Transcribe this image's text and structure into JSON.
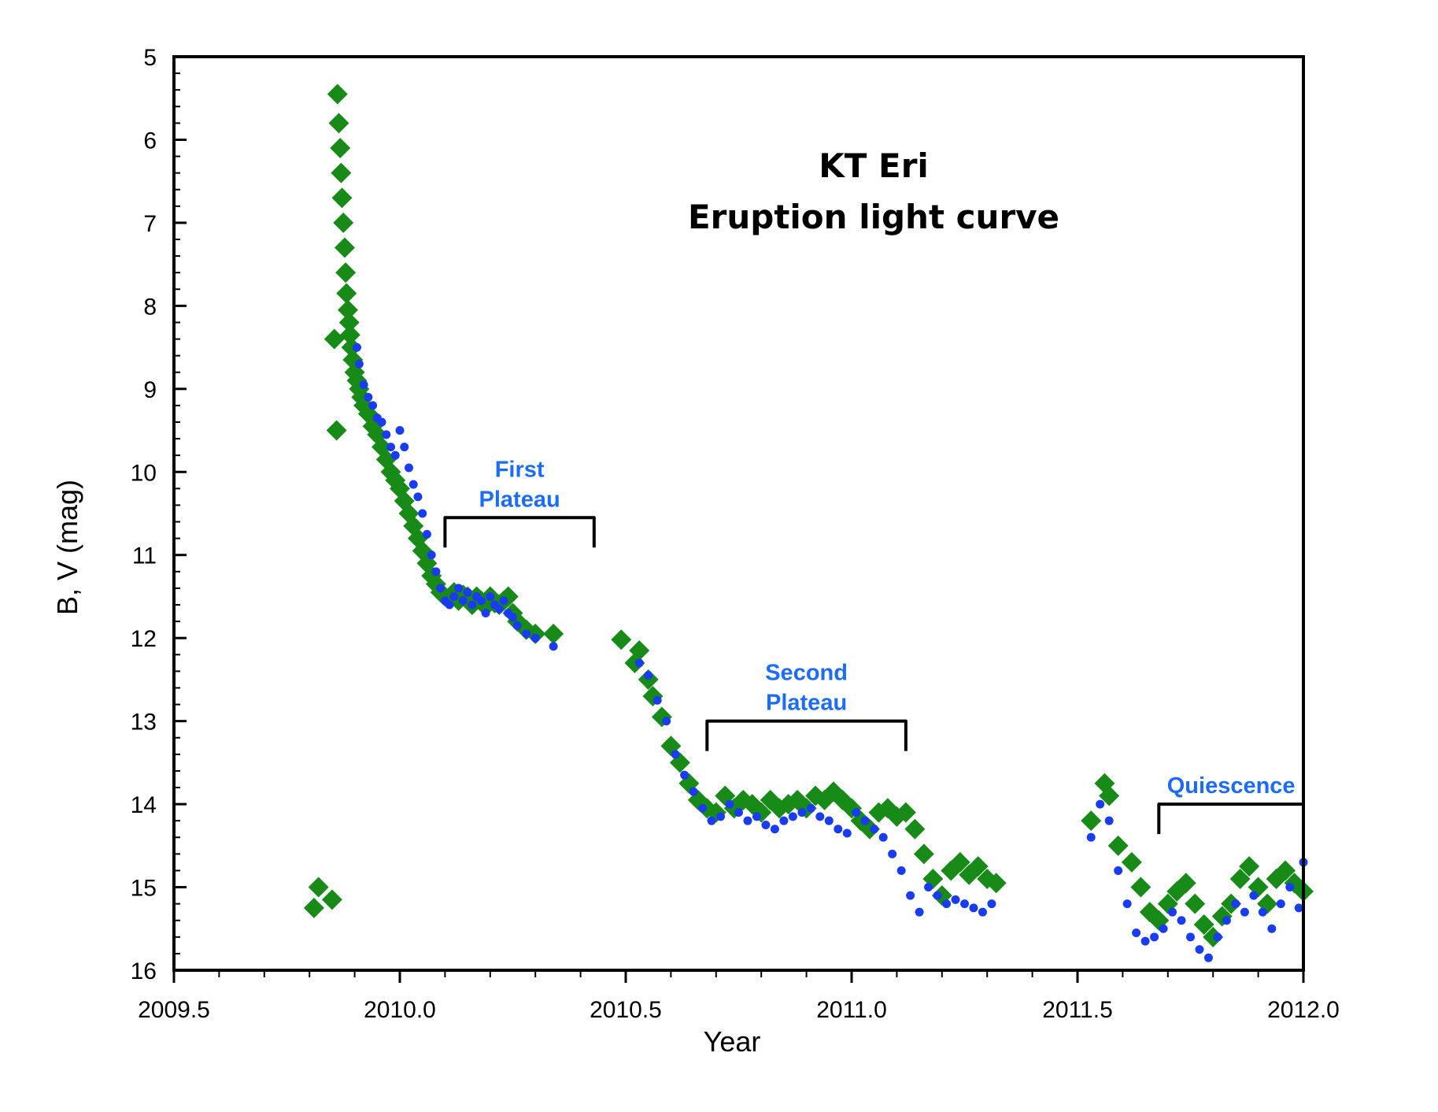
{
  "chart_data": {
    "type": "scatter",
    "title_lines": [
      "KT Eri",
      "Eruption light curve"
    ],
    "xlabel": "Year",
    "ylabel": "B, V (mag)",
    "xlim": [
      2009.5,
      2012.0
    ],
    "ylim": [
      5,
      16
    ],
    "y_inverted": true,
    "x_ticks": [
      2009.5,
      2010.0,
      2010.5,
      2011.0,
      2011.5,
      2012.0
    ],
    "x_tick_labels": [
      "2009.5",
      "2010.0",
      "2010.5",
      "2011.0",
      "2011.5",
      "2012.0"
    ],
    "y_ticks": [
      5,
      6,
      7,
      8,
      9,
      10,
      11,
      12,
      13,
      14,
      15,
      16
    ],
    "y_tick_labels": [
      "5",
      "6",
      "7",
      "8",
      "9",
      "10",
      "11",
      "12",
      "13",
      "14",
      "15",
      "16"
    ],
    "grid": false,
    "colors": {
      "v_band": "#188a18",
      "b_band": "#1a3cf0",
      "annotation": "#1c6cf5",
      "axis": "#000000"
    },
    "series": [
      {
        "name": "V",
        "marker": "diamond",
        "color": "#188a18",
        "x": [
          2009.81,
          2009.82,
          2009.85,
          2009.855,
          2009.86,
          2009.862,
          2009.865,
          2009.868,
          2009.87,
          2009.872,
          2009.875,
          2009.878,
          2009.88,
          2009.882,
          2009.885,
          2009.888,
          2009.89,
          2009.893,
          2009.896,
          2009.9,
          2009.905,
          2009.91,
          2009.915,
          2009.92,
          2009.93,
          2009.94,
          2009.95,
          2009.96,
          2009.97,
          2009.98,
          2009.99,
          2010.0,
          2010.01,
          2010.02,
          2010.03,
          2010.04,
          2010.05,
          2010.06,
          2010.07,
          2010.08,
          2010.09,
          2010.1,
          2010.11,
          2010.12,
          2010.13,
          2010.14,
          2010.15,
          2010.16,
          2010.17,
          2010.18,
          2010.19,
          2010.2,
          2010.21,
          2010.22,
          2010.23,
          2010.24,
          2010.25,
          2010.26,
          2010.28,
          2010.3,
          2010.34,
          2010.49,
          2010.52,
          2010.53,
          2010.55,
          2010.56,
          2010.58,
          2010.6,
          2010.62,
          2010.64,
          2010.66,
          2010.68,
          2010.7,
          2010.72,
          2010.74,
          2010.76,
          2010.78,
          2010.8,
          2010.82,
          2010.84,
          2010.86,
          2010.88,
          2010.9,
          2010.92,
          2010.94,
          2010.96,
          2010.98,
          2011.0,
          2011.02,
          2011.04,
          2011.06,
          2011.08,
          2011.1,
          2011.12,
          2011.14,
          2011.16,
          2011.18,
          2011.2,
          2011.22,
          2011.24,
          2011.26,
          2011.28,
          2011.3,
          2011.32,
          2011.53,
          2011.56,
          2011.57,
          2011.59,
          2011.62,
          2011.64,
          2011.66,
          2011.68,
          2011.7,
          2011.72,
          2011.74,
          2011.76,
          2011.78,
          2011.8,
          2011.82,
          2011.84,
          2011.86,
          2011.88,
          2011.9,
          2011.92,
          2011.94,
          2011.96,
          2011.98,
          2012.0
        ],
        "y": [
          15.25,
          15.0,
          15.15,
          8.4,
          9.5,
          5.45,
          5.8,
          6.1,
          6.4,
          6.7,
          7.0,
          7.3,
          7.6,
          7.85,
          8.05,
          8.2,
          8.35,
          8.5,
          8.65,
          8.8,
          8.9,
          9.0,
          9.1,
          9.2,
          9.3,
          9.45,
          9.55,
          9.7,
          9.85,
          10.0,
          10.1,
          10.2,
          10.35,
          10.5,
          10.65,
          10.8,
          10.95,
          11.1,
          11.25,
          11.35,
          11.45,
          11.5,
          11.52,
          11.45,
          11.55,
          11.48,
          11.5,
          11.6,
          11.5,
          11.55,
          11.62,
          11.5,
          11.58,
          11.6,
          11.55,
          11.5,
          11.7,
          11.8,
          11.9,
          11.95,
          11.95,
          12.02,
          12.3,
          12.15,
          12.5,
          12.7,
          12.95,
          13.3,
          13.5,
          13.75,
          13.95,
          14.05,
          14.1,
          13.9,
          14.05,
          13.95,
          14.0,
          14.1,
          13.95,
          14.05,
          14.0,
          13.95,
          14.05,
          13.9,
          13.95,
          13.85,
          13.95,
          14.05,
          14.2,
          14.3,
          14.1,
          14.05,
          14.15,
          14.1,
          14.3,
          14.6,
          14.9,
          15.1,
          14.8,
          14.7,
          14.85,
          14.75,
          14.9,
          14.95,
          14.2,
          13.75,
          13.9,
          14.5,
          14.7,
          15.0,
          15.3,
          15.4,
          15.2,
          15.05,
          14.95,
          15.2,
          15.45,
          15.6,
          15.35,
          15.2,
          14.9,
          14.75,
          15.0,
          15.2,
          14.9,
          14.8,
          14.95,
          15.05
        ]
      },
      {
        "name": "B",
        "marker": "circle",
        "color": "#1a3cf0",
        "x": [
          2009.905,
          2009.91,
          2009.92,
          2009.93,
          2009.94,
          2009.95,
          2009.96,
          2009.97,
          2009.98,
          2009.99,
          2010.0,
          2010.01,
          2010.02,
          2010.03,
          2010.04,
          2010.05,
          2010.06,
          2010.07,
          2010.08,
          2010.09,
          2010.1,
          2010.11,
          2010.12,
          2010.13,
          2010.14,
          2010.15,
          2010.16,
          2010.17,
          2010.18,
          2010.19,
          2010.2,
          2010.21,
          2010.22,
          2010.23,
          2010.24,
          2010.25,
          2010.26,
          2010.28,
          2010.3,
          2010.34,
          2010.53,
          2010.55,
          2010.57,
          2010.59,
          2010.61,
          2010.63,
          2010.65,
          2010.67,
          2010.69,
          2010.71,
          2010.73,
          2010.75,
          2010.77,
          2010.79,
          2010.81,
          2010.83,
          2010.85,
          2010.87,
          2010.89,
          2010.91,
          2010.93,
          2010.95,
          2010.97,
          2010.99,
          2011.01,
          2011.03,
          2011.05,
          2011.07,
          2011.09,
          2011.11,
          2011.13,
          2011.15,
          2011.17,
          2011.19,
          2011.21,
          2011.23,
          2011.25,
          2011.27,
          2011.29,
          2011.31,
          2011.53,
          2011.55,
          2011.57,
          2011.59,
          2011.61,
          2011.63,
          2011.65,
          2011.67,
          2011.69,
          2011.71,
          2011.73,
          2011.75,
          2011.77,
          2011.79,
          2011.81,
          2011.83,
          2011.85,
          2011.87,
          2011.89,
          2011.91,
          2011.93,
          2011.95,
          2011.97,
          2011.99,
          2012.0
        ],
        "y": [
          8.5,
          8.7,
          8.95,
          9.1,
          9.2,
          9.35,
          9.4,
          9.55,
          9.7,
          9.8,
          9.5,
          9.7,
          9.95,
          10.15,
          10.3,
          10.5,
          10.75,
          11.0,
          11.2,
          11.4,
          11.55,
          11.6,
          11.5,
          11.4,
          11.55,
          11.45,
          11.6,
          11.5,
          11.55,
          11.7,
          11.5,
          11.6,
          11.65,
          11.55,
          11.7,
          11.75,
          11.85,
          11.95,
          12.0,
          12.1,
          12.3,
          12.45,
          12.75,
          13.0,
          13.4,
          13.65,
          13.85,
          14.05,
          14.2,
          14.15,
          14.0,
          14.1,
          14.2,
          14.15,
          14.25,
          14.3,
          14.2,
          14.15,
          14.1,
          14.05,
          14.15,
          14.2,
          14.3,
          14.35,
          14.1,
          14.2,
          14.3,
          14.4,
          14.6,
          14.8,
          15.1,
          15.3,
          15.0,
          15.1,
          15.2,
          15.15,
          15.2,
          15.25,
          15.3,
          15.2,
          14.4,
          14.0,
          14.2,
          14.8,
          15.2,
          15.55,
          15.65,
          15.6,
          15.5,
          15.3,
          15.4,
          15.6,
          15.75,
          15.85,
          15.6,
          15.4,
          15.2,
          15.3,
          15.1,
          15.3,
          15.5,
          15.2,
          15.0,
          15.25,
          14.7
        ]
      }
    ],
    "annotations": [
      {
        "lines": [
          "First",
          "Plateau"
        ],
        "x_start": 2010.1,
        "x_end": 2010.43,
        "y": 10.55
      },
      {
        "lines": [
          "Second",
          "Plateau"
        ],
        "x_start": 2010.68,
        "x_end": 2011.12,
        "y": 13.0
      },
      {
        "lines": [
          "Quiescence"
        ],
        "x_start": 2011.68,
        "x_end": 2012.0,
        "y": 14.0
      }
    ]
  }
}
